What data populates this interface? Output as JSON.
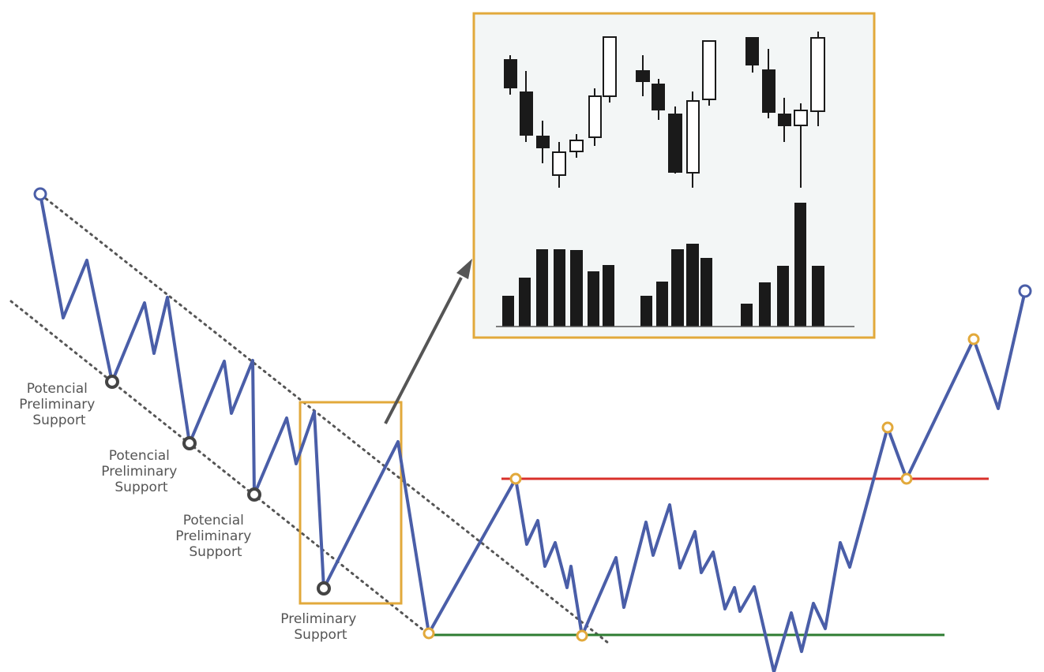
{
  "labels": {
    "potential_1": [
      "Potencial",
      "Preliminary",
      "Support"
    ],
    "potential_2": [
      "Potencial",
      "Preliminary",
      "Support"
    ],
    "potential_3": [
      "Potencial",
      "Preliminary",
      "Support"
    ],
    "preliminary": [
      "Preliminary",
      "Support"
    ]
  },
  "colors": {
    "price_line": "#4a5ea8",
    "channel_line": "#555555",
    "highlight_box": "#e2a93b",
    "resistance_line": "#d9302b",
    "support_line": "#2e7d32",
    "swing_point": "#e2a93b",
    "support_marker": "#444444",
    "inset_background": "#f3f6f6",
    "candle_dark": "#1a1a1a",
    "arrow": "#555555"
  }
}
